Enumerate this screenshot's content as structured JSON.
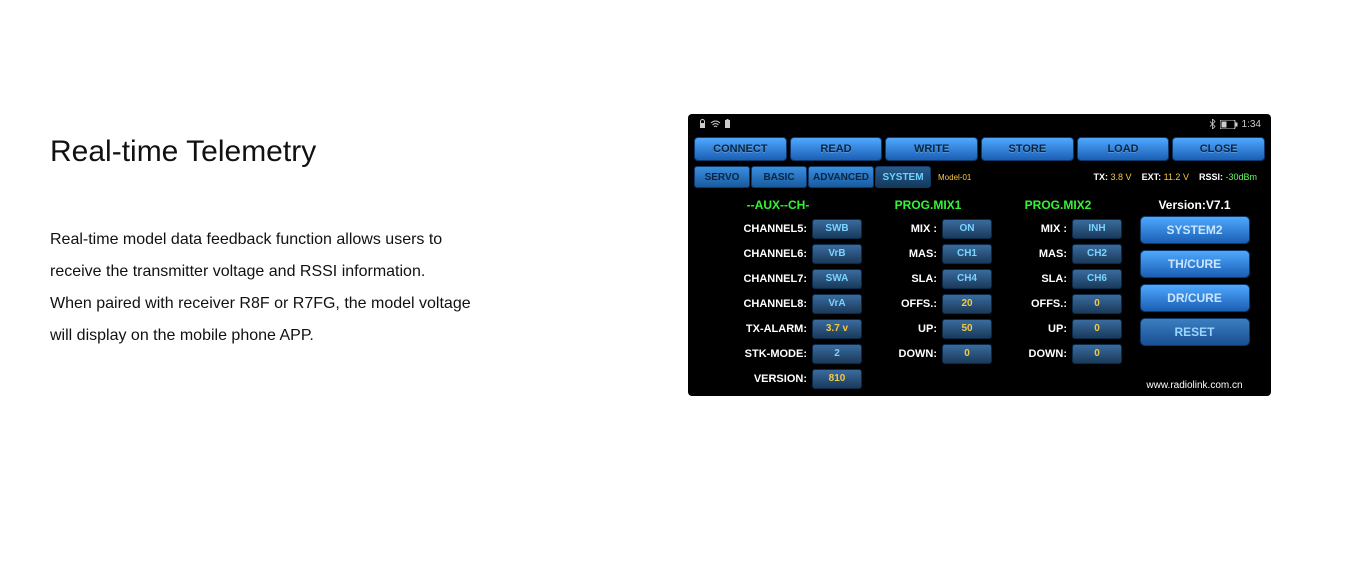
{
  "left": {
    "title": "Real-time Telemetry",
    "desc_line1": "Real-time model data feedback function allows users to",
    "desc_line2": "receive the transmitter voltage and RSSI information.",
    "desc_line3": "When paired with receiver R8F or R7FG, the model voltage",
    "desc_line4": "will display on the mobile phone APP."
  },
  "statusbar": {
    "time": "1:34"
  },
  "colors": {
    "button_gradient_top": "#4fa8ff",
    "button_gradient_bottom": "#1a5fb4",
    "button_border": "#0d3a6b",
    "header_green": "#34f534",
    "value_blue": "#7ad4ff",
    "value_yellow": "#f5c842",
    "background": "#000000"
  },
  "topButtons": {
    "connect": "CONNECT",
    "read": "READ",
    "write": "WRITE",
    "store": "STORE",
    "load": "LOAD",
    "close": "CLOSE"
  },
  "tabs": {
    "servo": "SERVO",
    "basic": "BASIC",
    "advanced": "ADVANCED",
    "system": "SYSTEM",
    "model": "Model-01"
  },
  "telemetry": {
    "tx_label": "TX:",
    "tx_value": "3.8 V",
    "ext_label": "EXT:",
    "ext_value": "11.2 V",
    "rssi_label": "RSSI:",
    "rssi_value": "-30dBm"
  },
  "aux": {
    "header": "--AUX--CH-",
    "rows": [
      {
        "label": "CHANNEL5:",
        "value": "SWB"
      },
      {
        "label": "CHANNEL6:",
        "value": "VrB"
      },
      {
        "label": "CHANNEL7:",
        "value": "SWA"
      },
      {
        "label": "CHANNEL8:",
        "value": "VrA"
      },
      {
        "label": "TX-ALARM:",
        "value": "3.7   v",
        "yellow": true
      },
      {
        "label": "STK-MODE:",
        "value": "2"
      },
      {
        "label": "VERSION:",
        "value": "810",
        "yellow": true
      }
    ]
  },
  "mix1": {
    "header": "PROG.MIX1",
    "rows": [
      {
        "label": "MIX :",
        "value": "ON"
      },
      {
        "label": "MAS:",
        "value": "CH1"
      },
      {
        "label": "SLA:",
        "value": "CH4"
      },
      {
        "label": "OFFS.:",
        "value": "20",
        "yellow": true
      },
      {
        "label": "UP:",
        "value": "50",
        "yellow": true
      },
      {
        "label": "DOWN:",
        "value": "0",
        "yellow": true
      }
    ]
  },
  "mix2": {
    "header": "PROG.MIX2",
    "rows": [
      {
        "label": "MIX :",
        "value": "INH"
      },
      {
        "label": "MAS:",
        "value": "CH2"
      },
      {
        "label": "SLA:",
        "value": "CH6"
      },
      {
        "label": "OFFS.:",
        "value": "0",
        "yellow": true
      },
      {
        "label": "UP:",
        "value": "0",
        "yellow": true
      },
      {
        "label": "DOWN:",
        "value": "0",
        "yellow": true
      }
    ]
  },
  "version": {
    "header": "Version:V7.1",
    "buttons": {
      "system2": "SYSTEM2",
      "thcure": "TH/CURE",
      "drcure": "DR/CURE",
      "reset": "RESET"
    },
    "footer": "www.radiolink.com.cn"
  }
}
